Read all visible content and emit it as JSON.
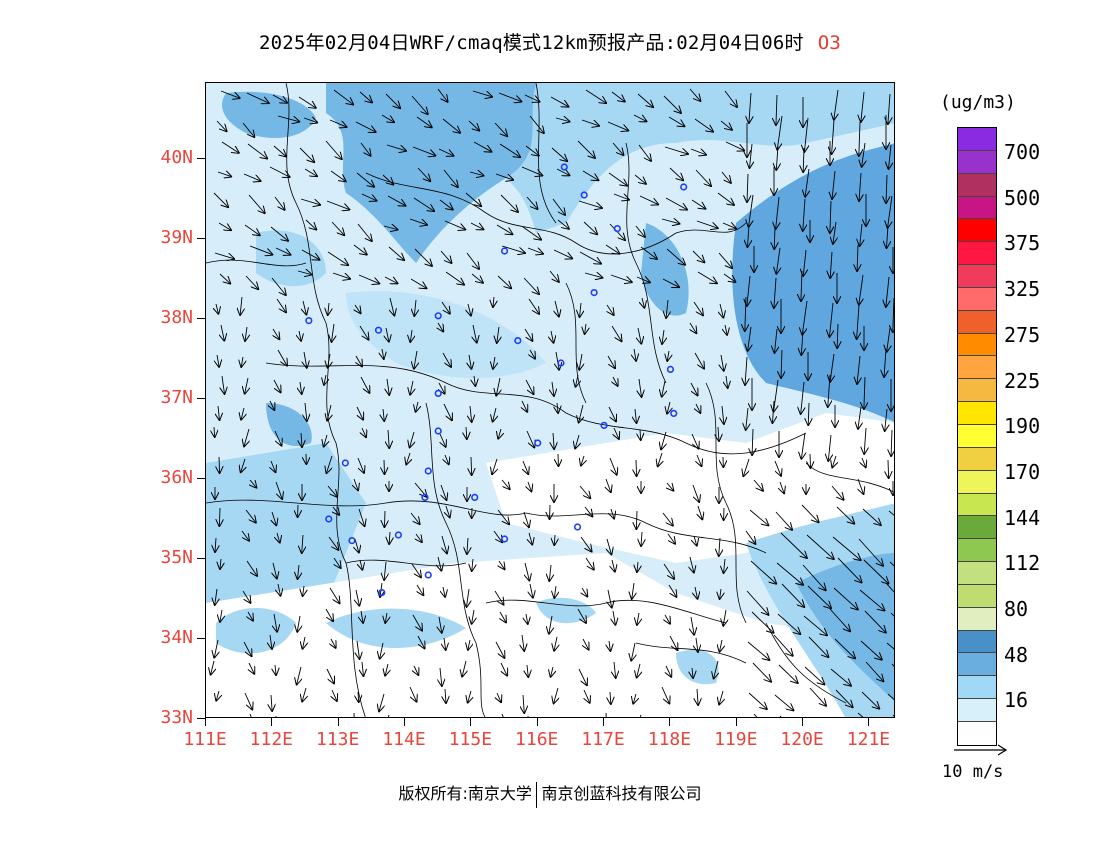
{
  "title": {
    "main": "2025年02月04日WRF/cmaq模式12km预报产品:02月04日06时",
    "species": "O3"
  },
  "map": {
    "latitude_labels": [
      "40N",
      "39N",
      "38N",
      "37N",
      "36N",
      "35N",
      "34N",
      "33N"
    ],
    "longitude_labels": [
      "111E",
      "112E",
      "113E",
      "114E",
      "115E",
      "116E",
      "117E",
      "118E",
      "119E",
      "120E",
      "121E"
    ],
    "extent": {
      "lon_min": 111,
      "lon_max": 121.4,
      "lat_min": 33,
      "lat_max": 40.95
    }
  },
  "legend": {
    "unit": "(ug/m3)",
    "tick_labels": [
      "700",
      "500",
      "375",
      "325",
      "275",
      "225",
      "190",
      "170",
      "144",
      "112",
      "80",
      "48",
      "16"
    ],
    "colors": [
      "#8a2be2",
      "#9932cc",
      "#b03060",
      "#c71585",
      "#ff0000",
      "#ff1744",
      "#f03c5c",
      "#ff6a6a",
      "#f0602a",
      "#ff8c00",
      "#ffa540",
      "#f5b942",
      "#ffe600",
      "#ffff33",
      "#f0d040",
      "#eef55a",
      "#c8e650",
      "#6aaa3a",
      "#8fc850",
      "#c2e080",
      "#bfdc70",
      "#e0eec0",
      "#4a90c8",
      "#6aaee0",
      "#a0d8f5",
      "#d8f0fa",
      "#ffffff"
    ]
  },
  "wind_reference": {
    "label": "10 m/s"
  },
  "footer": {
    "left": "版权所有:南京大学",
    "right": "南京创蓝科技有限公司"
  },
  "stations": [
    {
      "lon": 116.4,
      "lat": 39.9
    },
    {
      "lon": 116.7,
      "lat": 39.55
    },
    {
      "lon": 117.2,
      "lat": 39.13
    },
    {
      "lon": 118.2,
      "lat": 39.65
    },
    {
      "lon": 115.5,
      "lat": 38.85
    },
    {
      "lon": 116.85,
      "lat": 38.33
    },
    {
      "lon": 112.55,
      "lat": 37.98
    },
    {
      "lon": 113.6,
      "lat": 37.86
    },
    {
      "lon": 114.5,
      "lat": 38.04
    },
    {
      "lon": 115.7,
      "lat": 37.73
    },
    {
      "lon": 116.35,
      "lat": 37.45
    },
    {
      "lon": 118.0,
      "lat": 37.37
    },
    {
      "lon": 114.5,
      "lat": 37.07
    },
    {
      "lon": 118.05,
      "lat": 36.82
    },
    {
      "lon": 117.0,
      "lat": 36.67
    },
    {
      "lon": 114.5,
      "lat": 36.6
    },
    {
      "lon": 116.0,
      "lat": 36.45
    },
    {
      "lon": 113.1,
      "lat": 36.2
    },
    {
      "lon": 114.35,
      "lat": 36.1
    },
    {
      "lon": 114.3,
      "lat": 35.77
    },
    {
      "lon": 115.05,
      "lat": 35.77
    },
    {
      "lon": 112.85,
      "lat": 35.5
    },
    {
      "lon": 113.2,
      "lat": 35.23
    },
    {
      "lon": 113.9,
      "lat": 35.3
    },
    {
      "lon": 115.5,
      "lat": 35.25
    },
    {
      "lon": 116.6,
      "lat": 35.4
    },
    {
      "lon": 114.35,
      "lat": 34.8
    },
    {
      "lon": 113.65,
      "lat": 34.58
    }
  ]
}
